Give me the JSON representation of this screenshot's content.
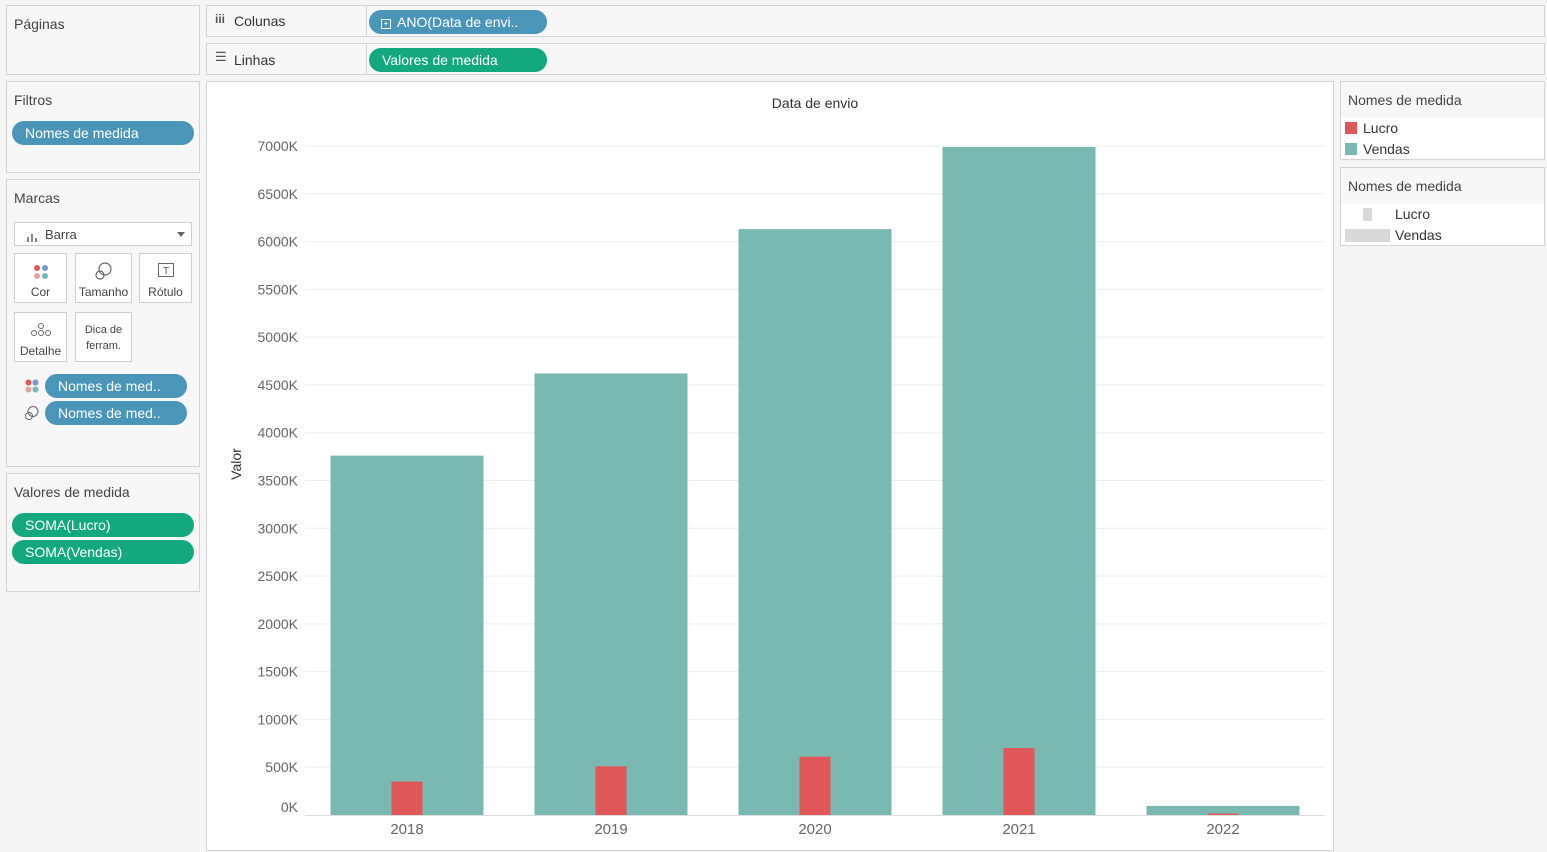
{
  "pages_card": {
    "title": "Páginas"
  },
  "columns_shelf": {
    "label": "Colunas",
    "pill": "ANO(Data de envi.."
  },
  "rows_shelf": {
    "label": "Linhas",
    "pill": "Valores de medida"
  },
  "filters_card": {
    "title": "Filtros",
    "pills": [
      "Nomes de medida"
    ]
  },
  "marks_card": {
    "title": "Marcas",
    "mark_type": "Barra",
    "buttons": {
      "color": "Cor",
      "size": "Tamanho",
      "label": "Rótulo",
      "detail": "Detalhe",
      "tooltip_line1": "Dica de",
      "tooltip_line2": "ferram."
    },
    "pills": [
      "Nomes de med..",
      "Nomes de med.."
    ]
  },
  "measure_values_card": {
    "title": "Valores de medida",
    "pills": [
      "SOMA(Lucro)",
      "SOMA(Vendas)"
    ]
  },
  "color_legend": {
    "title": "Nomes de medida",
    "items": [
      "Lucro",
      "Vendas"
    ]
  },
  "size_legend": {
    "title": "Nomes de medida",
    "items": [
      "Lucro",
      "Vendas"
    ]
  },
  "colors": {
    "vendas": "#7ab8b2",
    "lucro": "#e05759",
    "blue_pill": "#4a95b8",
    "green_pill": "#13a87e"
  },
  "chart_data": {
    "type": "bar",
    "title": "Data de envio",
    "ylabel": "Valor",
    "xlabel": "",
    "categories": [
      "2018",
      "2019",
      "2020",
      "2021",
      "2022"
    ],
    "series": [
      {
        "name": "Vendas",
        "values": [
          3760,
          4620,
          6130,
          6990,
          95
        ]
      },
      {
        "name": "Lucro",
        "values": [
          350,
          510,
          610,
          700,
          15
        ]
      }
    ],
    "ylim": [
      0,
      7000
    ],
    "yticks": [
      0,
      500,
      1000,
      1500,
      2000,
      2500,
      3000,
      3500,
      4000,
      4500,
      5000,
      5500,
      6000,
      6500,
      7000
    ],
    "ytick_labels": [
      "0K",
      "500K",
      "1000K",
      "1500K",
      "2000K",
      "2500K",
      "3000K",
      "3500K",
      "4000K",
      "4500K",
      "5000K",
      "5500K",
      "6000K",
      "6500K",
      "7000K"
    ],
    "grid": true
  }
}
